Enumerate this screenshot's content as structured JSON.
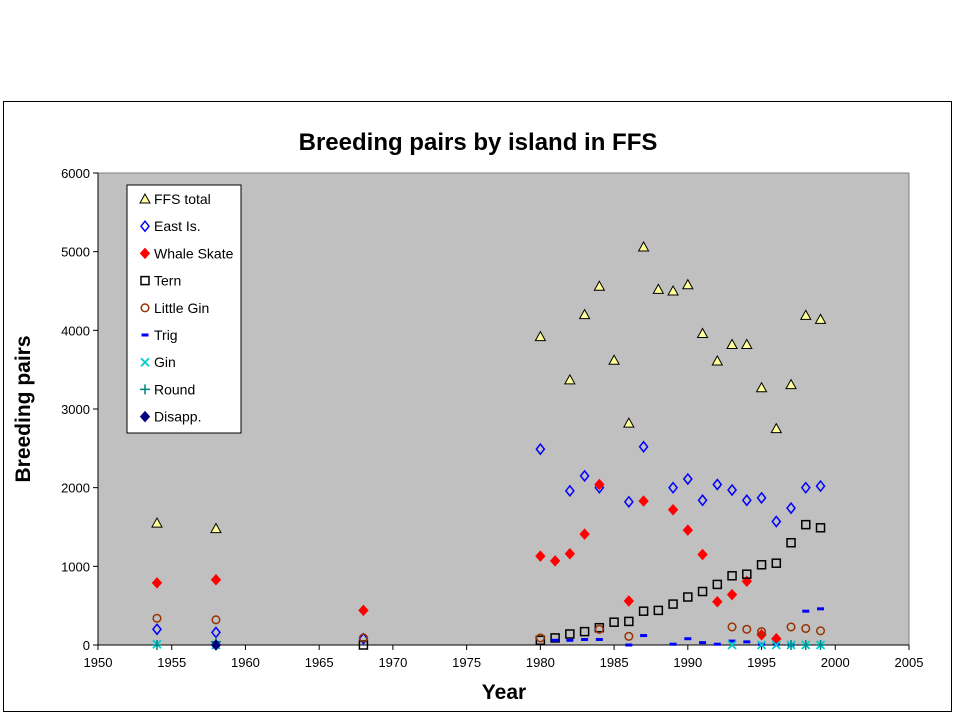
{
  "chart_data": {
    "type": "scatter",
    "title": "Breeding pairs by island in FFS",
    "xlabel": "Year",
    "ylabel": "Breeding pairs",
    "xlim": [
      1950,
      2005
    ],
    "ylim": [
      0,
      6000
    ],
    "x_ticks": [
      "1950",
      "1955",
      "1960",
      "1965",
      "1970",
      "1975",
      "1980",
      "1985",
      "1990",
      "1995",
      "2000",
      "2005"
    ],
    "y_ticks": [
      "0",
      "1000",
      "2000",
      "3000",
      "4000",
      "5000",
      "6000"
    ],
    "grid": false,
    "plot_background": "#c0c0c0",
    "legend_placement": "top-left",
    "series": [
      {
        "name": "FFS total",
        "marker": "triangle",
        "color": "#000000",
        "fill": "#ffff99",
        "x": [
          1954,
          1958,
          1980,
          1982,
          1983,
          1984,
          1985,
          1986,
          1987,
          1988,
          1989,
          1990,
          1991,
          1992,
          1993,
          1994,
          1995,
          1996,
          1997,
          1998,
          1999
        ],
        "y": [
          1550,
          1480,
          3920,
          3370,
          4200,
          4560,
          3620,
          2820,
          5060,
          4520,
          4500,
          4580,
          3960,
          3610,
          3820,
          3820,
          3270,
          2750,
          3310,
          4190,
          4140
        ]
      },
      {
        "name": "East Is.",
        "marker": "diamond-open",
        "color": "#0000ff",
        "x": [
          1954,
          1958,
          1968,
          1980,
          1982,
          1983,
          1984,
          1986,
          1987,
          1989,
          1990,
          1991,
          1992,
          1993,
          1994,
          1995,
          1996,
          1997,
          1998,
          1999
        ],
        "y": [
          200,
          160,
          80,
          2490,
          1960,
          2150,
          2000,
          1820,
          2520,
          2000,
          2110,
          1840,
          2040,
          1970,
          1840,
          1870,
          1570,
          1740,
          2000,
          2020
        ]
      },
      {
        "name": "Whale Skate",
        "marker": "diamond-filled",
        "color": "#ff0000",
        "x": [
          1954,
          1958,
          1968,
          1980,
          1981,
          1982,
          1983,
          1984,
          1986,
          1987,
          1989,
          1990,
          1991,
          1992,
          1993,
          1994,
          1995,
          1996
        ],
        "y": [
          790,
          830,
          440,
          1130,
          1070,
          1160,
          1410,
          2040,
          560,
          1830,
          1720,
          1460,
          1150,
          550,
          640,
          810,
          130,
          80
        ]
      },
      {
        "name": "Tern",
        "marker": "square-open",
        "color": "#000000",
        "x": [
          1968,
          1980,
          1981,
          1982,
          1983,
          1984,
          1985,
          1986,
          1987,
          1988,
          1989,
          1990,
          1991,
          1992,
          1993,
          1994,
          1995,
          1996,
          1997,
          1998,
          1999
        ],
        "y": [
          0,
          60,
          90,
          140,
          170,
          220,
          290,
          300,
          430,
          440,
          520,
          610,
          680,
          770,
          880,
          900,
          1020,
          1040,
          1300,
          1530,
          1490
        ]
      },
      {
        "name": "Little Gin",
        "marker": "circle-open",
        "color": "#993300",
        "x": [
          1954,
          1958,
          1968,
          1980,
          1984,
          1986,
          1993,
          1994,
          1995,
          1997,
          1998,
          1999
        ],
        "y": [
          340,
          320,
          90,
          90,
          200,
          110,
          230,
          200,
          170,
          230,
          210,
          180
        ]
      },
      {
        "name": "Trig",
        "marker": "dash",
        "color": "#0000ff",
        "x": [
          1981,
          1982,
          1983,
          1984,
          1986,
          1987,
          1989,
          1990,
          1991,
          1992,
          1993,
          1994,
          1995,
          1996,
          1997,
          1998,
          1999
        ],
        "y": [
          60,
          60,
          70,
          70,
          0,
          120,
          10,
          80,
          30,
          10,
          50,
          40,
          10,
          10,
          0,
          430,
          460
        ]
      },
      {
        "name": "Gin",
        "marker": "x",
        "color": "#00cccc",
        "x": [
          1954,
          1958,
          1993,
          1995,
          1996,
          1997,
          1998,
          1999
        ],
        "y": [
          10,
          0,
          0,
          0,
          0,
          0,
          0,
          0
        ]
      },
      {
        "name": "Round",
        "marker": "plus",
        "color": "#008080",
        "x": [
          1954,
          1958,
          1997,
          1998,
          1999
        ],
        "y": [
          0,
          40,
          0,
          0,
          0
        ]
      },
      {
        "name": "Disapp.",
        "marker": "diamond-filled",
        "color": "#000080",
        "x": [
          1958
        ],
        "y": [
          0
        ]
      }
    ]
  }
}
